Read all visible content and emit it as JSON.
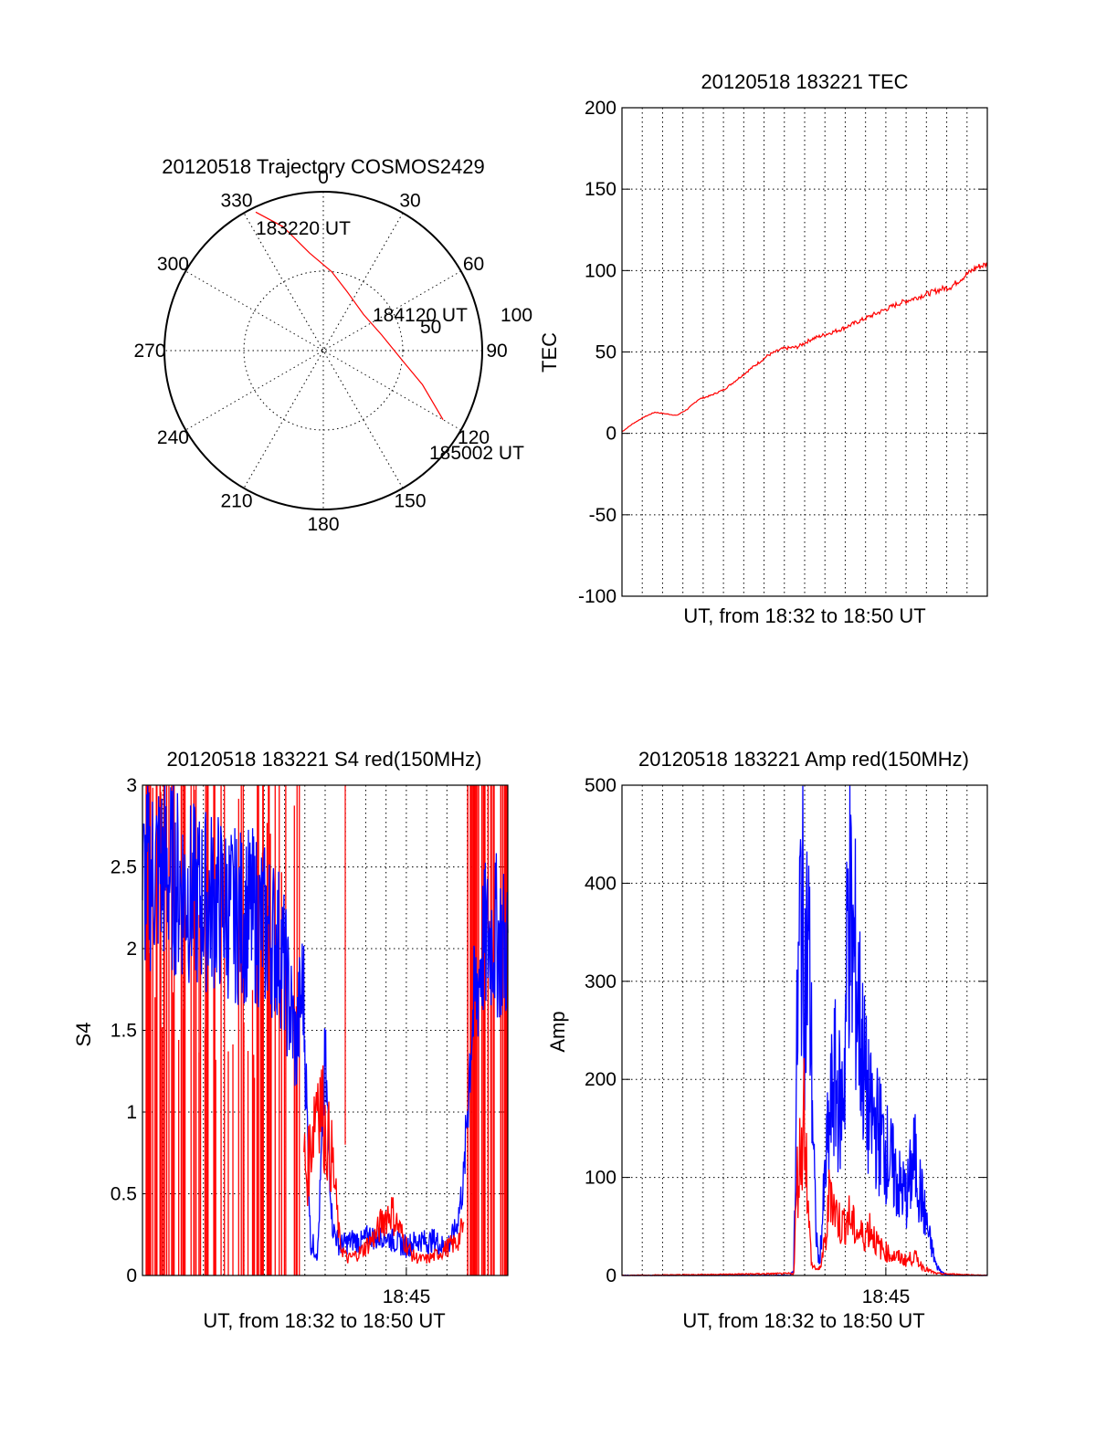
{
  "chart_data": [
    {
      "id": "trajectory",
      "type": "polar",
      "title": "20120518 Trajectory COSMOS2429",
      "angle_labels": [
        "0",
        "30",
        "60",
        "90",
        "120",
        "150",
        "180",
        "210",
        "240",
        "270",
        "300",
        "330"
      ],
      "radius_labels": [
        "50",
        "100"
      ],
      "rlim": [
        0,
        100
      ],
      "grid": true,
      "series": [
        {
          "color": "#ff0000",
          "points": [
            {
              "az": 334,
              "r": 97
            },
            {
              "az": 342,
              "r": 82
            },
            {
              "az": 352,
              "r": 62
            },
            {
              "az": 6,
              "r": 50
            },
            {
              "az": 22,
              "r": 40
            },
            {
              "az": 48,
              "r": 34
            },
            {
              "az": 75,
              "r": 38
            },
            {
              "az": 97,
              "r": 50
            },
            {
              "az": 109,
              "r": 66
            },
            {
              "az": 120,
              "r": 87
            }
          ]
        }
      ],
      "annotations": [
        "183220 UT",
        "184120 UT",
        "185002 UT"
      ]
    },
    {
      "id": "tec",
      "type": "line",
      "title": "20120518 183221 TEC",
      "xlabel": "UT, from 18:32 to 18:50 UT",
      "ylabel": "TEC",
      "xlim": [
        0,
        1
      ],
      "ylim": [
        -100,
        200
      ],
      "yticks": [
        "-100",
        "-50",
        "0",
        "50",
        "100",
        "150",
        "200"
      ],
      "grid": true,
      "series": [
        {
          "color": "#ff0000",
          "x": [
            0.0,
            0.03,
            0.06,
            0.09,
            0.12,
            0.15,
            0.18,
            0.21,
            0.24,
            0.28,
            0.32,
            0.36,
            0.4,
            0.44,
            0.48,
            0.52,
            0.56,
            0.6,
            0.64,
            0.68,
            0.72,
            0.76,
            0.8,
            0.84,
            0.88,
            0.9,
            0.94,
            0.97,
            1.0
          ],
          "y": [
            1,
            6,
            10,
            13,
            12,
            11,
            15,
            21,
            23,
            27,
            34,
            41,
            48,
            52,
            53,
            58,
            61,
            64,
            68,
            72,
            76,
            80,
            83,
            86,
            89,
            90,
            97,
            102,
            104
          ]
        }
      ]
    },
    {
      "id": "s4",
      "type": "line",
      "title": "20120518 183221 S4 red(150MHz)",
      "xlabel": "UT, from 18:32 to 18:50 UT",
      "ylabel": "S4",
      "xticks": [
        "18:45"
      ],
      "xlim": [
        0,
        1
      ],
      "ylim": [
        0,
        3
      ],
      "yticks": [
        "0",
        "0.5",
        "1",
        "1.5",
        "2",
        "2.5",
        "3"
      ],
      "grid": true,
      "series": [
        {
          "color": "#ff0000",
          "x": [
            0.0,
            0.44,
            0.45,
            0.48,
            0.5,
            0.52,
            0.54,
            0.55,
            0.56,
            0.58,
            0.6,
            0.62,
            0.64,
            0.66,
            0.68,
            0.7,
            0.72,
            0.74,
            0.76,
            0.78,
            0.8,
            0.82,
            0.84,
            0.86,
            0.88,
            0.89,
            1.0
          ],
          "y": [
            null,
            0.8,
            0.6,
            1.2,
            0.9,
            0.7,
            0.2,
            0.15,
            0.1,
            0.12,
            0.15,
            0.2,
            0.25,
            0.35,
            0.4,
            0.3,
            0.2,
            0.12,
            0.1,
            0.1,
            0.12,
            0.15,
            0.18,
            0.2,
            0.3,
            null,
            null
          ]
        },
        {
          "color": "#0000ff",
          "x": [
            0.0,
            0.05,
            0.1,
            0.15,
            0.2,
            0.25,
            0.3,
            0.35,
            0.38,
            0.4,
            0.42,
            0.44,
            0.46,
            0.48,
            0.5,
            0.52,
            0.54,
            0.56,
            0.58,
            0.6,
            0.62,
            0.64,
            0.66,
            0.68,
            0.7,
            0.72,
            0.74,
            0.76,
            0.78,
            0.8,
            0.82,
            0.84,
            0.86,
            0.88,
            0.9,
            0.93,
            0.96,
            1.0
          ],
          "y": [
            2.4,
            2.5,
            2.4,
            2.3,
            2.3,
            2.2,
            2.2,
            2.1,
            2.0,
            1.7,
            1.4,
            1.8,
            0.2,
            0.15,
            1.3,
            0.3,
            0.18,
            0.2,
            0.22,
            0.2,
            0.25,
            0.22,
            0.25,
            0.22,
            0.2,
            0.18,
            0.2,
            0.22,
            0.2,
            0.22,
            0.18,
            0.2,
            0.3,
            0.6,
            1.5,
            2.0,
            2.1,
            2.0
          ]
        }
      ]
    },
    {
      "id": "amp",
      "type": "line",
      "title": "20120518 183221 Amp red(150MHz)",
      "xlabel": "UT, from 18:32 to 18:50 UT",
      "ylabel": "Amp",
      "xticks": [
        "18:45"
      ],
      "xlim": [
        0,
        1
      ],
      "ylim": [
        0,
        500
      ],
      "yticks": [
        "0",
        "100",
        "200",
        "300",
        "400",
        "500"
      ],
      "grid": true,
      "series": [
        {
          "color": "#ff0000",
          "x": [
            0.0,
            0.47,
            0.48,
            0.49,
            0.5,
            0.51,
            0.52,
            0.54,
            0.56,
            0.57,
            0.58,
            0.6,
            0.62,
            0.64,
            0.66,
            0.68,
            0.7,
            0.72,
            0.74,
            0.76,
            0.78,
            0.8,
            0.82,
            0.84,
            0.86,
            1.0
          ],
          "y": [
            0,
            2,
            100,
            130,
            180,
            60,
            10,
            5,
            40,
            100,
            70,
            50,
            60,
            45,
            40,
            50,
            30,
            25,
            20,
            18,
            15,
            20,
            10,
            5,
            2,
            0
          ]
        },
        {
          "color": "#0000ff",
          "x": [
            0.0,
            0.46,
            0.47,
            0.48,
            0.49,
            0.5,
            0.51,
            0.52,
            0.53,
            0.54,
            0.56,
            0.58,
            0.6,
            0.61,
            0.62,
            0.63,
            0.64,
            0.65,
            0.66,
            0.67,
            0.68,
            0.7,
            0.72,
            0.74,
            0.76,
            0.78,
            0.8,
            0.82,
            0.84,
            0.86,
            0.88,
            0.9,
            1.0
          ],
          "y": [
            0,
            0,
            5,
            250,
            390,
            300,
            350,
            200,
            50,
            10,
            120,
            200,
            170,
            220,
            400,
            330,
            310,
            260,
            220,
            180,
            160,
            150,
            130,
            110,
            90,
            80,
            120,
            80,
            40,
            10,
            2,
            0,
            0
          ]
        }
      ]
    }
  ]
}
